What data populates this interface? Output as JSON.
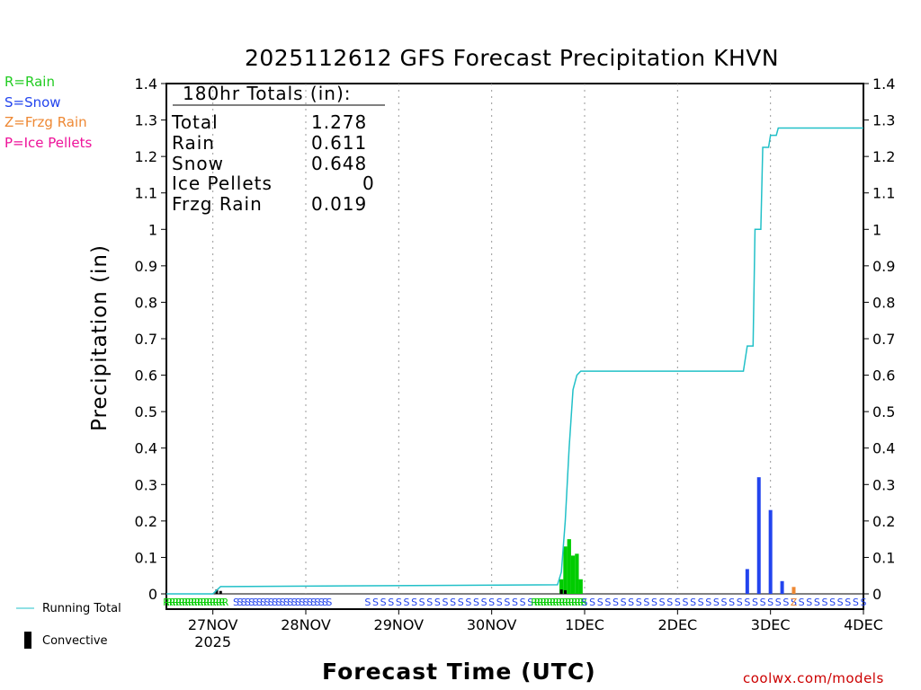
{
  "title": "2025112612 GFS Forecast Precipitation KHVN",
  "ylabel": "Precipitation (in)",
  "xlabel": "Forecast Time (UTC)",
  "credit": "coolwx.com/models",
  "ptype_legend": [
    {
      "label": "R=Rain",
      "color": "#22cc22"
    },
    {
      "label": "S=Snow",
      "color": "#2244ee"
    },
    {
      "label": "Z=Frzg Rain",
      "color": "#ee8833"
    },
    {
      "label": "P=Ice Pellets",
      "color": "#ee1199"
    }
  ],
  "bottom_legend": {
    "running_total": "Running Total",
    "convective": "Convective"
  },
  "totals": {
    "header": "180hr Totals (in):",
    "rows": [
      {
        "label": "Total",
        "value": "1.278"
      },
      {
        "label": "Rain",
        "value": "0.611"
      },
      {
        "label": "Snow",
        "value": "0.648"
      },
      {
        "label": "Ice Pellets",
        "value": "0"
      },
      {
        "label": "Frzg Rain",
        "value": "0.019"
      }
    ]
  },
  "colors": {
    "rain": "#00cc00",
    "snow": "#2244ee",
    "frzg": "#ee8833",
    "running_total": "#22c0c8",
    "convective": "#000000",
    "credit": "#cc0000"
  },
  "chart_data": {
    "type": "bar",
    "title": "2025112612 GFS Forecast Precipitation KHVN",
    "xlabel": "Forecast Time (UTC)",
    "ylabel": "Precipitation (in)",
    "ylim": [
      0,
      1.4
    ],
    "yticks": [
      "0",
      "0.1",
      "0.2",
      "0.3",
      "0.4",
      "0.5",
      "0.6",
      "0.7",
      "0.8",
      "0.9",
      "1",
      "1.1",
      "1.2",
      "1.3",
      "1.4"
    ],
    "xlim_hours": [
      0,
      180
    ],
    "xticks": [
      {
        "hour": 12,
        "label": "27NOV",
        "sub": "2025"
      },
      {
        "hour": 36,
        "label": "28NOV",
        "sub": ""
      },
      {
        "hour": 60,
        "label": "29NOV",
        "sub": ""
      },
      {
        "hour": 84,
        "label": "30NOV",
        "sub": ""
      },
      {
        "hour": 108,
        "label": "1DEC",
        "sub": ""
      },
      {
        "hour": 132,
        "label": "2DEC",
        "sub": ""
      },
      {
        "hour": 156,
        "label": "3DEC",
        "sub": ""
      },
      {
        "hour": 180,
        "label": "4DEC",
        "sub": ""
      }
    ],
    "grid": "vertical dotted at day boundaries",
    "bars": [
      {
        "hour": 102,
        "value": 0.04,
        "ptype": "rain"
      },
      {
        "hour": 103,
        "value": 0.13,
        "ptype": "rain"
      },
      {
        "hour": 104,
        "value": 0.15,
        "ptype": "rain"
      },
      {
        "hour": 105,
        "value": 0.105,
        "ptype": "rain"
      },
      {
        "hour": 106,
        "value": 0.11,
        "ptype": "rain"
      },
      {
        "hour": 107,
        "value": 0.04,
        "ptype": "rain"
      },
      {
        "hour": 150,
        "value": 0.068,
        "ptype": "snow"
      },
      {
        "hour": 153,
        "value": 0.32,
        "ptype": "snow"
      },
      {
        "hour": 156,
        "value": 0.23,
        "ptype": "snow"
      },
      {
        "hour": 159,
        "value": 0.035,
        "ptype": "snow"
      },
      {
        "hour": 162,
        "value": 0.019,
        "ptype": "frzg"
      }
    ],
    "convective_bars": [
      {
        "hour": 13,
        "value": 0.012
      },
      {
        "hour": 14,
        "value": 0.008
      },
      {
        "hour": 102,
        "value": 0.012
      },
      {
        "hour": 103,
        "value": 0.01
      }
    ],
    "running_total": [
      [
        0,
        0
      ],
      [
        12,
        0
      ],
      [
        14,
        0.02
      ],
      [
        101,
        0.025
      ],
      [
        102,
        0.06
      ],
      [
        103,
        0.2
      ],
      [
        104,
        0.4
      ],
      [
        105,
        0.56
      ],
      [
        106,
        0.6
      ],
      [
        107,
        0.611
      ],
      [
        149,
        0.611
      ],
      [
        150,
        0.68
      ],
      [
        151.5,
        0.68
      ],
      [
        152,
        1.0
      ],
      [
        153.5,
        1.0
      ],
      [
        154,
        1.225
      ],
      [
        155.5,
        1.225
      ],
      [
        156,
        1.258
      ],
      [
        157.5,
        1.258
      ],
      [
        158,
        1.278
      ],
      [
        180,
        1.278
      ]
    ],
    "ptype_strip": [
      {
        "from": 0,
        "to": 16,
        "code": "R"
      },
      {
        "from": 18,
        "to": 42,
        "code": "S",
        "every": 1
      },
      {
        "from": 52,
        "to": 94,
        "code": "S",
        "every": 2
      },
      {
        "from": 95,
        "to": 108,
        "code": "R"
      },
      {
        "from": 108,
        "to": 180,
        "code": "S",
        "every": 2
      }
    ]
  }
}
